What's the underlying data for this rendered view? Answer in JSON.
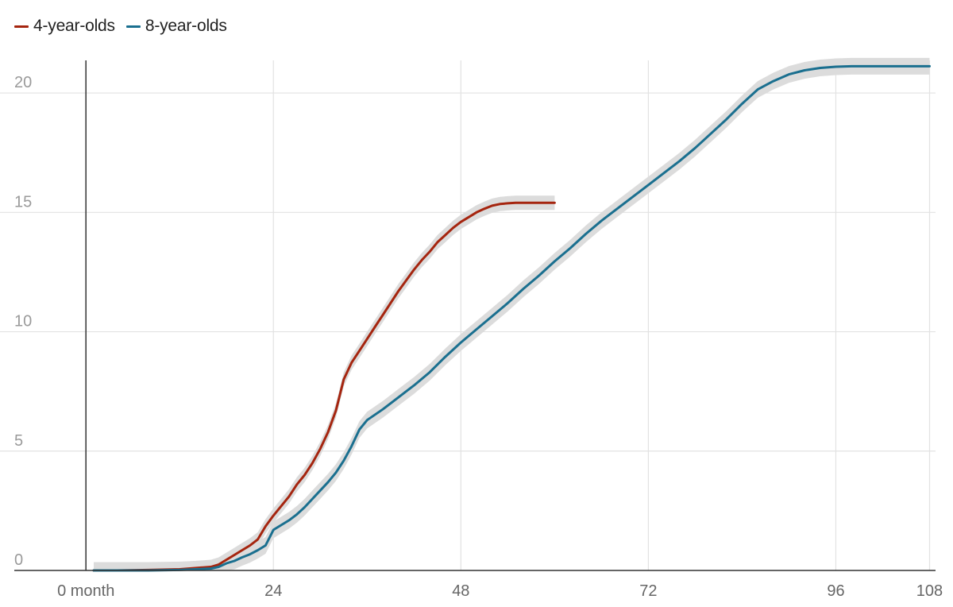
{
  "chart_data": {
    "type": "line",
    "x_ticks": [
      {
        "value": 0,
        "label": "0 month"
      },
      {
        "value": 24,
        "label": "24"
      },
      {
        "value": 48,
        "label": "48"
      },
      {
        "value": 72,
        "label": "72"
      },
      {
        "value": 96,
        "label": "96"
      },
      {
        "value": 108,
        "label": "108"
      }
    ],
    "y_ticks": [
      {
        "value": 0,
        "label": "0"
      },
      {
        "value": 5,
        "label": "5"
      },
      {
        "value": 10,
        "label": "10"
      },
      {
        "value": 15,
        "label": "15"
      },
      {
        "value": 20,
        "label": "20"
      }
    ],
    "xlim": [
      -11,
      111
    ],
    "ylim": [
      0,
      21.7
    ],
    "grid": true,
    "legend_position": "top-left",
    "band_color": "#dcdcdc",
    "series": [
      {
        "name": "4-year-olds",
        "color": "#a5250f",
        "band_halfwidth": 0.3,
        "x": [
          1,
          4,
          8,
          12,
          16,
          17,
          18,
          19,
          20,
          21,
          22,
          23,
          24,
          25,
          26,
          27,
          28,
          29,
          30,
          31,
          32,
          33,
          34,
          35,
          36,
          37,
          38,
          39,
          40,
          41,
          42,
          43,
          44,
          45,
          46,
          47,
          48,
          49,
          50,
          51,
          52,
          53,
          54,
          55,
          56,
          57,
          58,
          59,
          60
        ],
        "values": [
          0,
          0,
          0.02,
          0.05,
          0.15,
          0.25,
          0.45,
          0.65,
          0.85,
          1.05,
          1.3,
          1.85,
          2.3,
          2.7,
          3.1,
          3.6,
          4.0,
          4.5,
          5.1,
          5.8,
          6.7,
          8.0,
          8.7,
          9.2,
          9.7,
          10.2,
          10.7,
          11.2,
          11.7,
          12.15,
          12.6,
          13.0,
          13.35,
          13.75,
          14.05,
          14.35,
          14.6,
          14.8,
          15.0,
          15.15,
          15.28,
          15.35,
          15.38,
          15.4,
          15.4,
          15.4,
          15.4,
          15.4,
          15.4
        ]
      },
      {
        "name": "8-year-olds",
        "color": "#1a6f8f",
        "band_halfwidth": 0.35,
        "x": [
          1,
          8,
          12,
          16,
          17,
          18,
          19,
          20,
          21,
          22,
          23,
          24,
          25,
          26,
          27,
          28,
          29,
          30,
          31,
          32,
          33,
          34,
          35,
          36,
          38,
          40,
          42,
          44,
          46,
          48,
          50,
          52,
          54,
          56,
          58,
          60,
          62,
          64,
          66,
          68,
          70,
          72,
          74,
          76,
          78,
          80,
          82,
          84,
          86,
          88,
          90,
          92,
          94,
          96,
          98,
          100,
          102,
          104,
          106,
          108
        ],
        "values": [
          0,
          0,
          0.02,
          0.08,
          0.15,
          0.3,
          0.4,
          0.55,
          0.68,
          0.85,
          1.05,
          1.7,
          1.9,
          2.1,
          2.35,
          2.65,
          3.0,
          3.35,
          3.7,
          4.1,
          4.6,
          5.2,
          5.9,
          6.3,
          6.75,
          7.25,
          7.75,
          8.3,
          8.95,
          9.55,
          10.1,
          10.65,
          11.2,
          11.8,
          12.35,
          12.95,
          13.5,
          14.1,
          14.65,
          15.15,
          15.65,
          16.15,
          16.65,
          17.15,
          17.7,
          18.3,
          18.9,
          19.55,
          20.15,
          20.5,
          20.78,
          20.95,
          21.05,
          21.1,
          21.12,
          21.12,
          21.12,
          21.12,
          21.12,
          21.12
        ]
      }
    ]
  }
}
